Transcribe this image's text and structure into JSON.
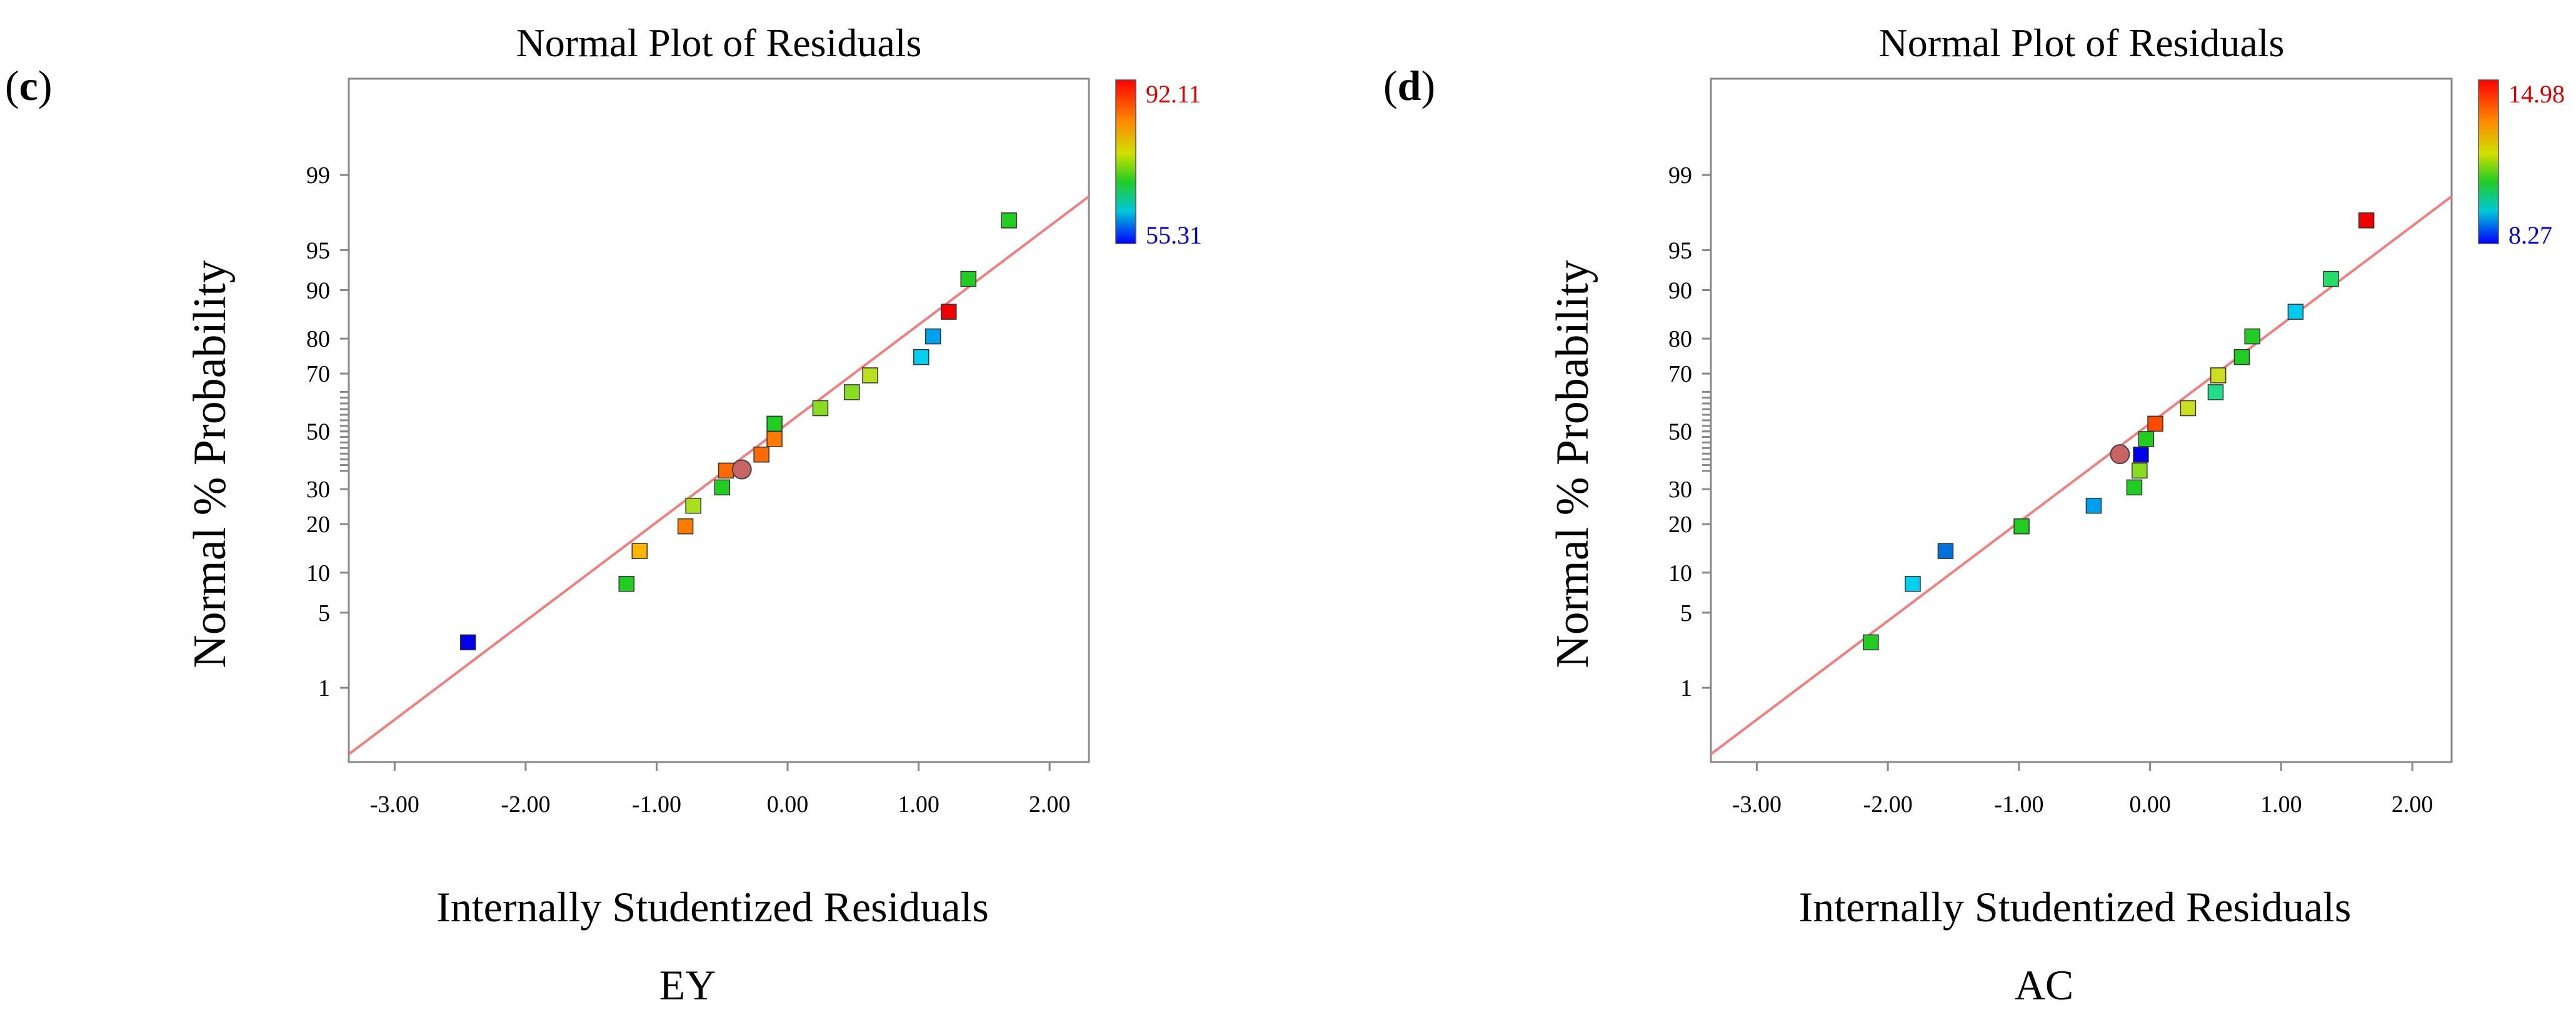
{
  "chart_data": [
    {
      "type": "scatter",
      "panel_label": "(c)",
      "panel_letter": "c",
      "title": "Normal Plot of Residuals",
      "xlabel": "Internally Studentized Residuals",
      "ylabel": "Normal % Probability",
      "caption": "EY",
      "xlim": [
        -3.35,
        2.3
      ],
      "xticks": [
        -3.0,
        -2.0,
        -1.0,
        0.0,
        1.0,
        2.0
      ],
      "xtick_labels": [
        "-3.00",
        "-2.00",
        "-1.00",
        "0.00",
        "1.00",
        "2.00"
      ],
      "yticks": [
        1,
        5,
        10,
        20,
        30,
        50,
        70,
        80,
        90,
        95,
        99
      ],
      "ytick_labels": [
        "1",
        "5",
        "10",
        "20",
        "30",
        "50",
        "70",
        "80",
        "90",
        "95",
        "99"
      ],
      "ylim_probit": [
        -3.0,
        3.2
      ],
      "grid": false,
      "fit_line": {
        "x": [
          -3.35,
          2.3
        ],
        "probability": [
          0.17,
          98.35
        ],
        "color": "#f08080"
      },
      "colorbar": {
        "max_label": "92.11",
        "min_label": "55.31",
        "max_color": "#ff0000",
        "min_color": "#0000ff"
      },
      "points": [
        {
          "x": -2.44,
          "p": 2.78,
          "color": "#0000e6"
        },
        {
          "x": -1.23,
          "p": 8.33,
          "color": "#22cc22"
        },
        {
          "x": -1.13,
          "p": 13.89,
          "color": "#ffb400"
        },
        {
          "x": -0.78,
          "p": 19.44,
          "color": "#ff7a00"
        },
        {
          "x": -0.72,
          "p": 25.0,
          "color": "#a8e01e"
        },
        {
          "x": -0.5,
          "p": 30.56,
          "color": "#22cc22"
        },
        {
          "x": -0.47,
          "p": 36.11,
          "color": "#ff6a00"
        },
        {
          "x": -0.2,
          "p": 41.67,
          "color": "#ff6a00"
        },
        {
          "x": -0.1,
          "p": 47.22,
          "color": "#ff7a00"
        },
        {
          "x": -0.1,
          "p": 52.78,
          "color": "#22cc22"
        },
        {
          "x": 0.25,
          "p": 58.33,
          "color": "#88dd22"
        },
        {
          "x": 0.49,
          "p": 63.89,
          "color": "#88dd22"
        },
        {
          "x": 0.63,
          "p": 69.44,
          "color": "#bbe022"
        },
        {
          "x": 1.02,
          "p": 75.0,
          "color": "#00d0f0"
        },
        {
          "x": 1.11,
          "p": 80.56,
          "color": "#00a0ee"
        },
        {
          "x": 1.23,
          "p": 86.11,
          "color": "#ee0000"
        },
        {
          "x": 1.38,
          "p": 91.67,
          "color": "#22cc22"
        },
        {
          "x": 1.69,
          "p": 97.22,
          "color": "#22cc22"
        }
      ],
      "center_point": {
        "x": -0.35,
        "p": 36.5,
        "color": "#c86464"
      }
    },
    {
      "type": "scatter",
      "panel_label": "(d)",
      "panel_letter": "d",
      "title": "Normal Plot of Residuals",
      "xlabel": "Internally Studentized Residuals",
      "ylabel": "Normal % Probability",
      "caption": "AC",
      "xlim": [
        -3.35,
        2.3
      ],
      "xticks": [
        -3.0,
        -2.0,
        -1.0,
        0.0,
        1.0,
        2.0
      ],
      "xtick_labels": [
        "-3.00",
        "-2.00",
        "-1.00",
        "0.00",
        "1.00",
        "2.00"
      ],
      "yticks": [
        1,
        5,
        10,
        20,
        30,
        50,
        70,
        80,
        90,
        95,
        99
      ],
      "ytick_labels": [
        "1",
        "5",
        "10",
        "20",
        "30",
        "50",
        "70",
        "80",
        "90",
        "95",
        "99"
      ],
      "ylim_probit": [
        -3.0,
        3.2
      ],
      "grid": false,
      "fit_line": {
        "x": [
          -3.35,
          2.3
        ],
        "probability": [
          0.17,
          98.35
        ],
        "color": "#f08080"
      },
      "colorbar": {
        "max_label": "14.98",
        "min_label": "8.27",
        "max_color": "#ff0000",
        "min_color": "#0000ff"
      },
      "points": [
        {
          "x": -2.13,
          "p": 2.78,
          "color": "#22cc22"
        },
        {
          "x": -1.81,
          "p": 8.33,
          "color": "#00d0f0"
        },
        {
          "x": -1.56,
          "p": 13.89,
          "color": "#0070dd"
        },
        {
          "x": -0.98,
          "p": 19.44,
          "color": "#22cc22"
        },
        {
          "x": -0.43,
          "p": 25.0,
          "color": "#00a0ee"
        },
        {
          "x": -0.12,
          "p": 30.56,
          "color": "#22cc22"
        },
        {
          "x": -0.08,
          "p": 36.11,
          "color": "#88dd22"
        },
        {
          "x": -0.07,
          "p": 41.67,
          "color": "#0000e6"
        },
        {
          "x": -0.03,
          "p": 47.22,
          "color": "#22cc22"
        },
        {
          "x": 0.04,
          "p": 52.78,
          "color": "#ff4a00"
        },
        {
          "x": 0.29,
          "p": 58.33,
          "color": "#ccdd22"
        },
        {
          "x": 0.5,
          "p": 63.89,
          "color": "#22dd88"
        },
        {
          "x": 0.52,
          "p": 69.44,
          "color": "#ccdd22"
        },
        {
          "x": 0.7,
          "p": 75.0,
          "color": "#22cc22"
        },
        {
          "x": 0.78,
          "p": 80.56,
          "color": "#22cc22"
        },
        {
          "x": 1.11,
          "p": 86.11,
          "color": "#00c8ee"
        },
        {
          "x": 1.38,
          "p": 91.67,
          "color": "#22dd66"
        },
        {
          "x": 1.65,
          "p": 97.22,
          "color": "#ee0000"
        }
      ],
      "center_point": {
        "x": -0.23,
        "p": 41.8,
        "color": "#c86464"
      }
    }
  ]
}
